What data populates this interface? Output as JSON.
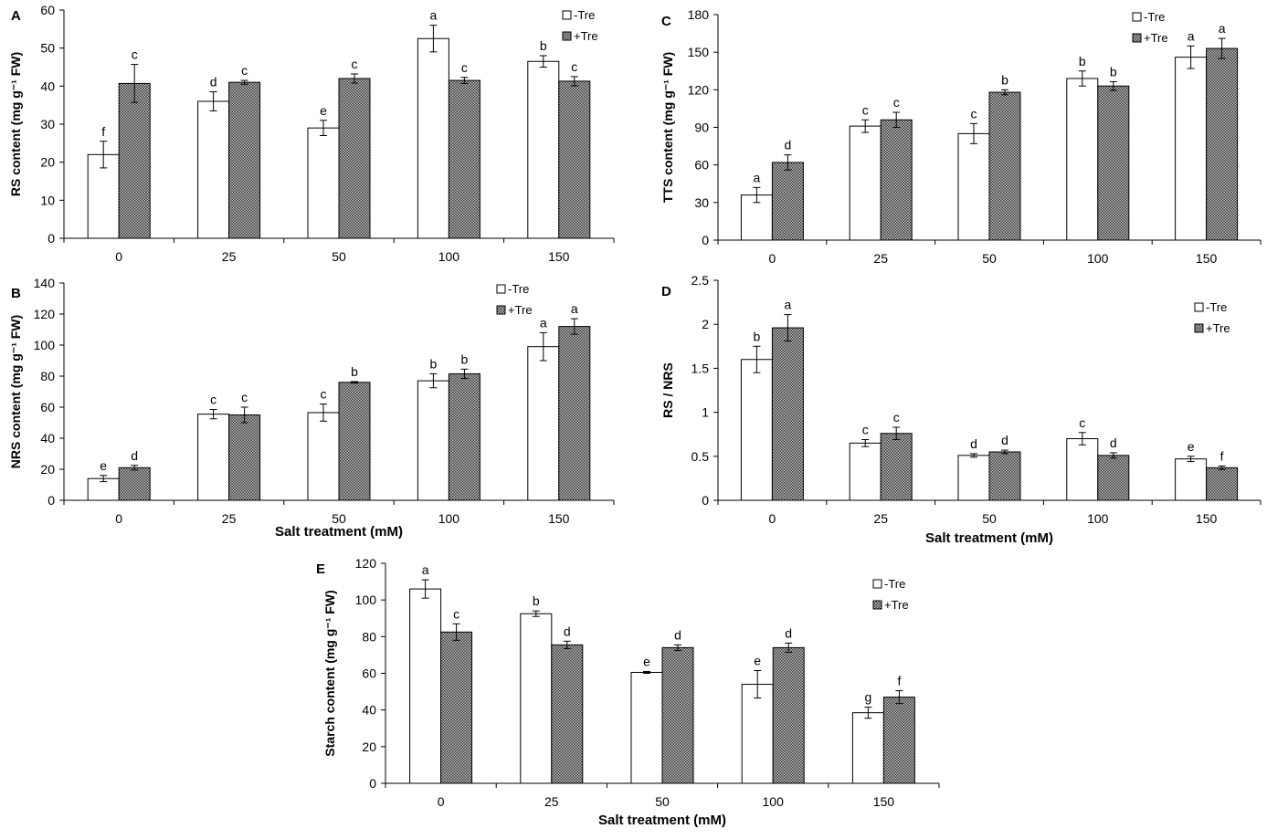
{
  "legend_labels": [
    "-Tre",
    "+Tre"
  ],
  "colors": {
    "minus_tre": "#ffffff",
    "plus_tre": "#5a5a5a",
    "axis": "#000000"
  },
  "chart_data": [
    {
      "panel": "A",
      "type": "bar",
      "categories": [
        "0",
        "25",
        "50",
        "100",
        "150"
      ],
      "ylabel": "RS content (mg g⁻¹ FW)",
      "xlabel": "",
      "ylim": [
        0,
        60
      ],
      "yticks": [
        0,
        10,
        20,
        30,
        40,
        50,
        60
      ],
      "legend_position": "top-right",
      "series": [
        {
          "name": "-Tre",
          "values": [
            22,
            36,
            29,
            52.5,
            46.5
          ],
          "errors": [
            3.5,
            2.5,
            2,
            3.5,
            1.5
          ],
          "letters": [
            "f",
            "d",
            "e",
            "a",
            "b"
          ]
        },
        {
          "name": "+Tre",
          "values": [
            40.7,
            41,
            42,
            41.5,
            41.3
          ],
          "errors": [
            5,
            0.5,
            1.2,
            0.8,
            1.2
          ],
          "letters": [
            "c",
            "c",
            "c",
            "c",
            "c"
          ]
        }
      ]
    },
    {
      "panel": "C",
      "type": "bar",
      "categories": [
        "0",
        "25",
        "50",
        "100",
        "150"
      ],
      "ylabel": "TTS content (mg g⁻¹ FW)",
      "xlabel": "",
      "ylim": [
        0,
        180
      ],
      "yticks": [
        0,
        30,
        60,
        90,
        120,
        150,
        180
      ],
      "legend_position": "top-right",
      "series": [
        {
          "name": "-Tre",
          "values": [
            36,
            91,
            85,
            129,
            146
          ],
          "errors": [
            6,
            5,
            8,
            6,
            9
          ],
          "letters": [
            "a",
            "c",
            "c",
            "b",
            "a"
          ]
        },
        {
          "name": "+Tre",
          "values": [
            62,
            96,
            118,
            123,
            153
          ],
          "errors": [
            6,
            6,
            2,
            3.5,
            8
          ],
          "letters": [
            "d",
            "c",
            "b",
            "b",
            "a"
          ]
        }
      ]
    },
    {
      "panel": "B",
      "type": "bar",
      "categories": [
        "0",
        "25",
        "50",
        "100",
        "150"
      ],
      "ylabel": "NRS content (mg g⁻¹ FW)",
      "xlabel": "Salt treatment (mM)",
      "ylim": [
        0,
        140
      ],
      "yticks": [
        0,
        20,
        40,
        60,
        80,
        100,
        120,
        140
      ],
      "legend_position": "top-right",
      "series": [
        {
          "name": "-Tre",
          "values": [
            14,
            55.5,
            56.5,
            77,
            99
          ],
          "errors": [
            2,
            3,
            5.5,
            4.5,
            9
          ],
          "letters": [
            "e",
            "c",
            "c",
            "b",
            "a"
          ]
        },
        {
          "name": "+Tre",
          "values": [
            21,
            55,
            76,
            81.5,
            112
          ],
          "errors": [
            1.5,
            5,
            0.5,
            3,
            5
          ],
          "letters": [
            "d",
            "c",
            "b",
            "b",
            "a"
          ]
        }
      ]
    },
    {
      "panel": "D",
      "type": "bar",
      "categories": [
        "0",
        "25",
        "50",
        "100",
        "150"
      ],
      "ylabel": "RS / NRS",
      "xlabel": "Salt treatment (mM)",
      "ylim": [
        0,
        2.5
      ],
      "yticks": [
        0,
        0.5,
        1,
        1.5,
        2,
        2.5
      ],
      "legend_position": "top-right",
      "series": [
        {
          "name": "-Tre",
          "values": [
            1.6,
            0.65,
            0.51,
            0.7,
            0.47
          ],
          "errors": [
            0.15,
            0.04,
            0.02,
            0.07,
            0.03
          ],
          "letters": [
            "b",
            "c",
            "d",
            "c",
            "e"
          ]
        },
        {
          "name": "+Tre",
          "values": [
            1.96,
            0.76,
            0.55,
            0.51,
            0.37
          ],
          "errors": [
            0.15,
            0.07,
            0.02,
            0.03,
            0.02
          ],
          "letters": [
            "a",
            "c",
            "d",
            "d",
            "f"
          ]
        }
      ]
    },
    {
      "panel": "E",
      "type": "bar",
      "categories": [
        "0",
        "25",
        "50",
        "100",
        "150"
      ],
      "ylabel": "Starch content (mg g⁻¹ FW)",
      "xlabel": "Salt treatment (mM)",
      "ylim": [
        0,
        120
      ],
      "yticks": [
        0,
        20,
        40,
        60,
        80,
        100,
        120
      ],
      "legend_position": "top-right",
      "series": [
        {
          "name": "-Tre",
          "values": [
            106,
            92.5,
            60.5,
            54,
            38.5
          ],
          "errors": [
            5,
            1.5,
            0.5,
            7.5,
            3
          ],
          "letters": [
            "a",
            "b",
            "e",
            "e",
            "g"
          ]
        },
        {
          "name": "+Tre",
          "values": [
            82.5,
            75.5,
            74,
            74,
            47
          ],
          "errors": [
            4.5,
            2,
            1.5,
            2.5,
            3.5
          ],
          "letters": [
            "c",
            "d",
            "d",
            "d",
            "f"
          ]
        }
      ]
    }
  ]
}
